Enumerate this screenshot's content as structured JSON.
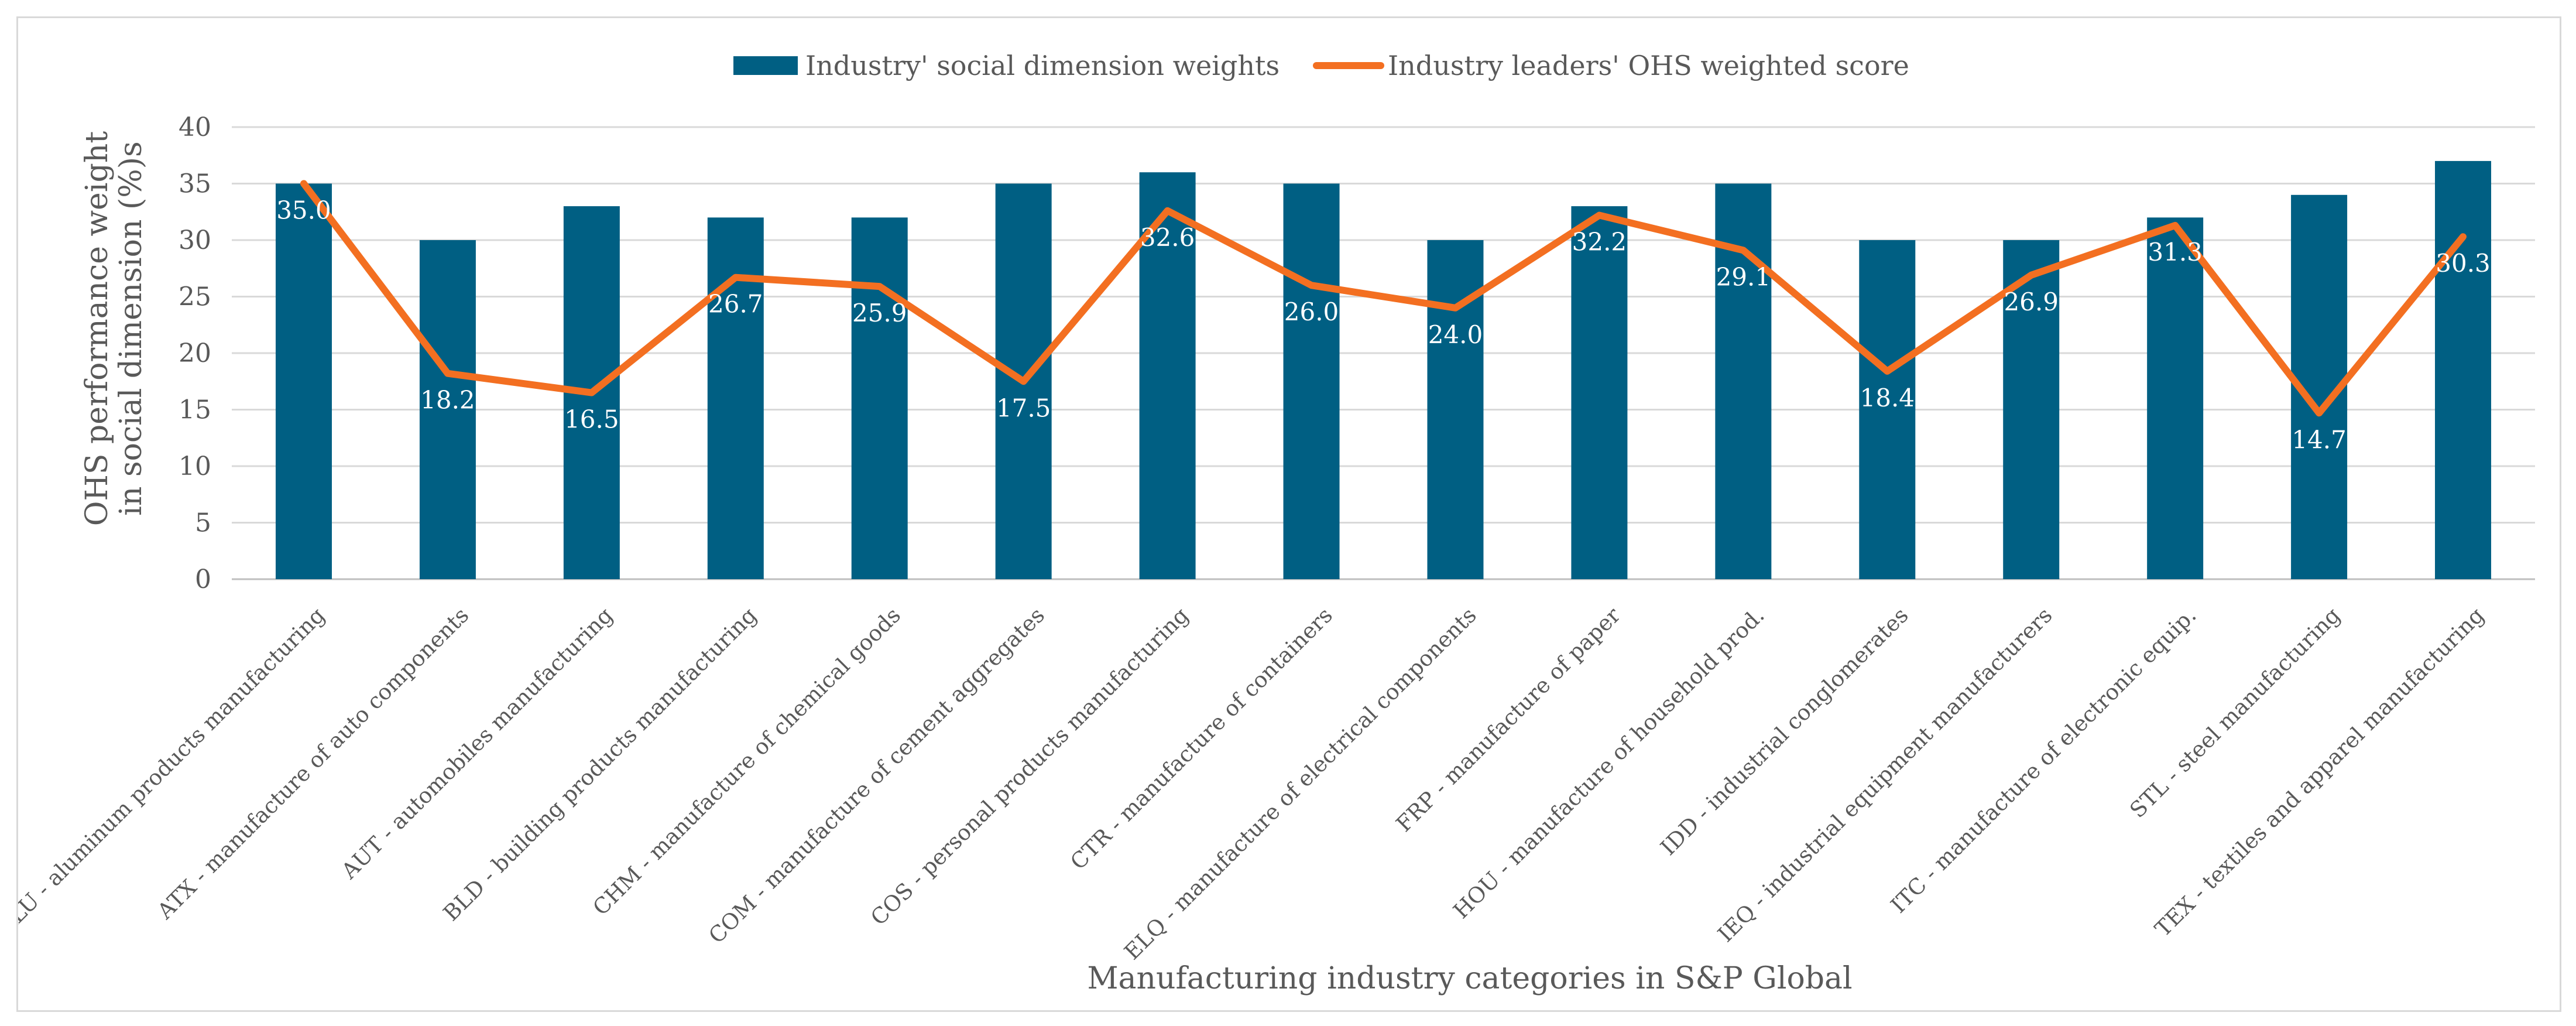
{
  "chart_data": {
    "type": "bar",
    "title": "",
    "xlabel": "Manufacturing industry categories in S&P Global",
    "ylabel_line1": "OHS performance weight",
    "ylabel_line2": "in social dimension (%)s",
    "ylim": [
      0,
      40
    ],
    "yticks": [
      0,
      5,
      10,
      15,
      20,
      25,
      30,
      35,
      40
    ],
    "grid": true,
    "legend_position": "top-center",
    "categories": [
      "ALU - aluminum products manufacturing",
      "ATX - manufacture of auto components",
      "AUT - automobiles manufacturing",
      "BLD - building products manufacturing",
      "CHM - manufacture of chemical goods",
      "COM - manufacture of cement aggregates",
      "COS - personal products manufacturing",
      "CTR - manufacture of containers",
      "ELQ - manufacture of electrical components",
      "FRP - manufacture of paper",
      "HOU - manufacture of household prod.",
      "IDD - industrial conglomerates",
      "IEQ - industrial equipment manufacturers",
      "ITC - manufacture of electronic equip.",
      "STL - steel manufacturing",
      "TEX - textiles and apparel manufacturing"
    ],
    "series": [
      {
        "name": "Industry' social dimension weights",
        "kind": "bar",
        "color": "#005f83",
        "values": [
          35,
          30,
          33,
          32,
          32,
          35,
          36,
          35,
          30,
          33,
          35,
          30,
          30,
          32,
          34,
          37
        ]
      },
      {
        "name": "Industry leaders' OHS weighted score",
        "kind": "line",
        "color": "#f36f21",
        "values": [
          35.0,
          18.2,
          16.5,
          26.7,
          25.9,
          17.5,
          32.6,
          26.0,
          24.0,
          32.2,
          29.1,
          18.4,
          26.9,
          31.3,
          14.7,
          30.3
        ],
        "labels": [
          "35.0",
          "18.2",
          "16.5",
          "26.7",
          "25.9",
          "17.5",
          "32.6",
          "26.0",
          "24.0",
          "32.2",
          "29.1",
          "18.4",
          "26.9",
          "31.3",
          "14.7",
          "30.3"
        ]
      }
    ]
  }
}
